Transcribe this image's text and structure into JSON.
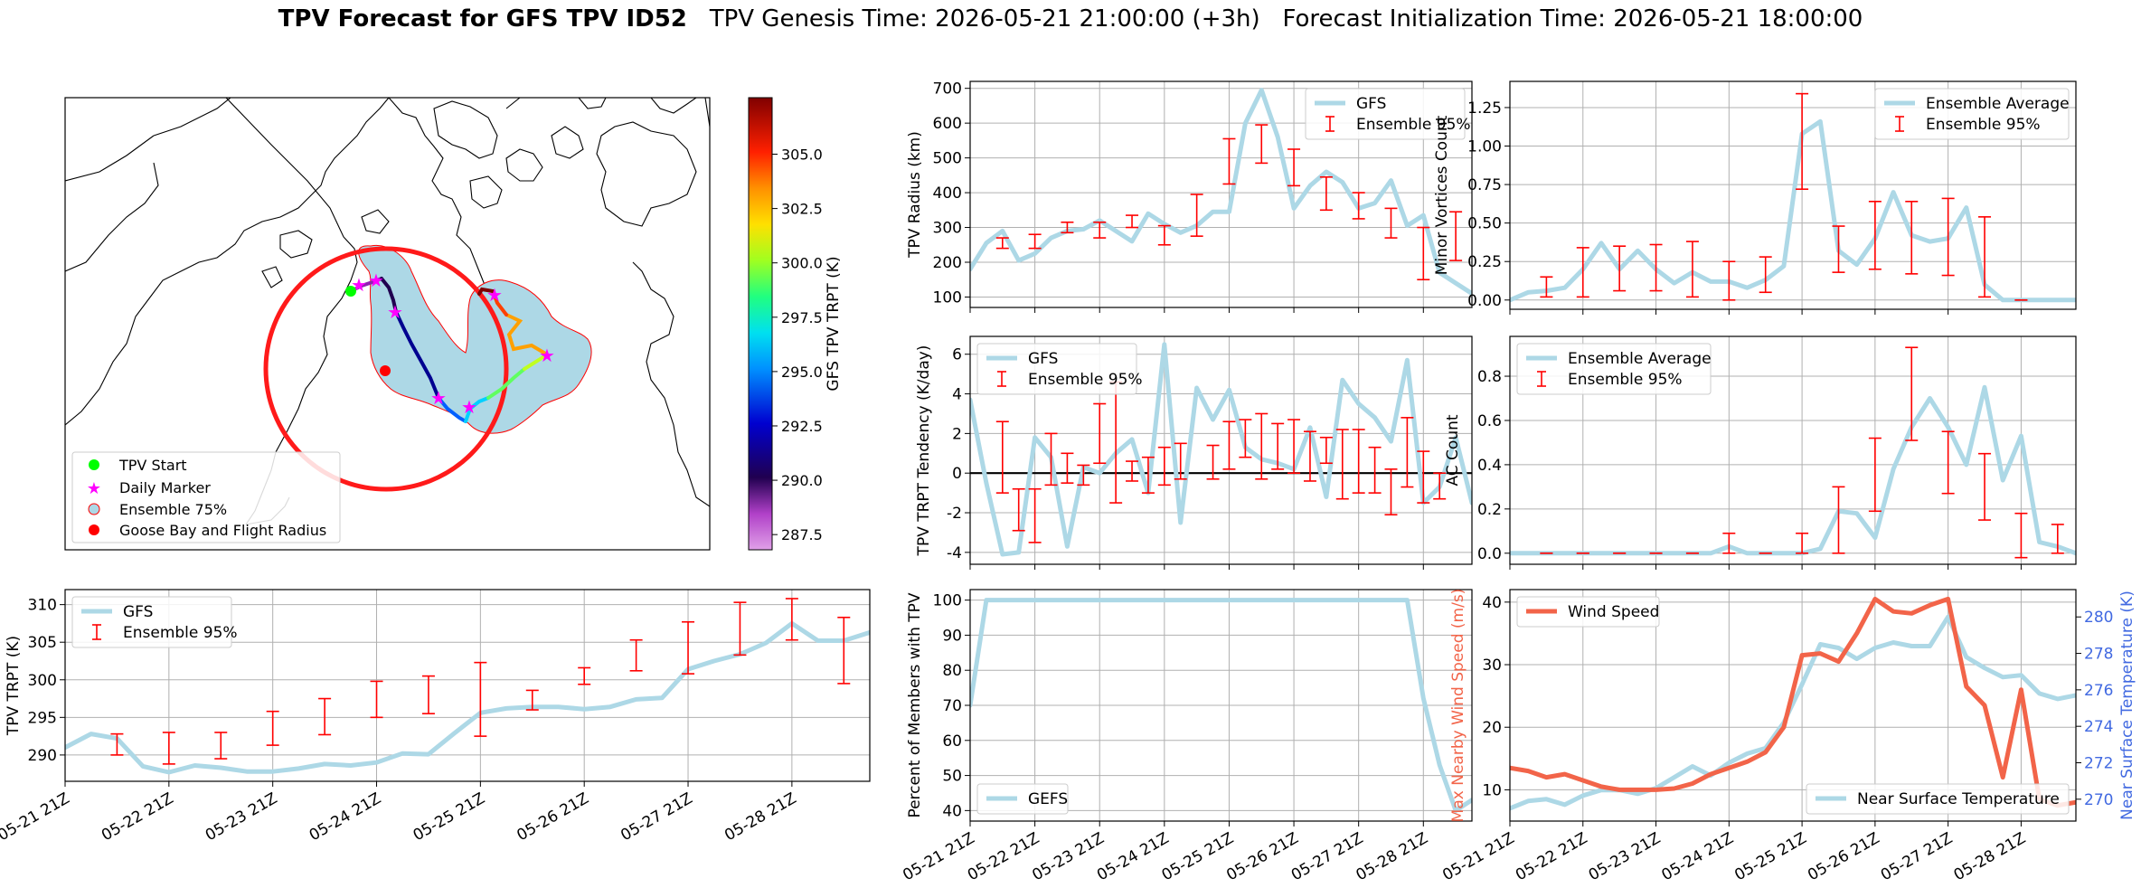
{
  "title": {
    "main": "TPV Forecast for GFS TPV ID52",
    "genesis": "TPV Genesis Time: 2026-05-21 21:00:00 (+3h)",
    "init": "Forecast Initialization Time: 2026-05-21 18:00:00"
  },
  "colors": {
    "gfs_line": "#add8e6",
    "errorbar": "#ff0000",
    "wind": "#f26449",
    "temp_axis": "#4169e1",
    "ensemble_fill": "#add8e6"
  },
  "map": {
    "type": "map",
    "colorbar": {
      "label": "GFS TPV TRPT (K)",
      "ticks": [
        "287.5",
        "290.0",
        "292.5",
        "295.0",
        "297.5",
        "300.0",
        "302.5",
        "305.0"
      ],
      "range": [
        286.8,
        307.6
      ]
    },
    "legend": [
      {
        "label": "TPV Start",
        "symbol": "circle",
        "color": "#00ff00"
      },
      {
        "label": "Daily Marker",
        "symbol": "star",
        "color": "#ff00ff"
      },
      {
        "label": "Ensemble 75%",
        "symbol": "circle-outline",
        "color": "#add8e6"
      },
      {
        "label": "Goose Bay and Flight Radius",
        "symbol": "circle",
        "color": "#ff0000"
      }
    ]
  },
  "chart_data": [
    {
      "id": "tpv_trpt",
      "type": "line",
      "ylabel": "TPV TRPT (K)",
      "ylim": [
        286.5,
        312
      ],
      "yticks": [
        290,
        295,
        300,
        305,
        310
      ],
      "xlim": [
        0,
        31
      ],
      "xticks": [
        "05-21 21Z",
        "05-22 21Z",
        "05-23 21Z",
        "05-24 21Z",
        "05-25 21Z",
        "05-26 21Z",
        "05-27 21Z",
        "05-28 21Z"
      ],
      "legend": [
        "GFS",
        "Ensemble 95%"
      ],
      "legend_loc": "upper-left",
      "gfs": [
        291.0,
        292.8,
        292.2,
        288.5,
        287.7,
        288.6,
        288.3,
        287.8,
        287.8,
        288.2,
        288.8,
        288.6,
        289.0,
        290.2,
        290.1,
        292.9,
        295.6,
        296.2,
        296.4,
        296.4,
        296.1,
        296.4,
        297.4,
        297.6,
        301.4,
        302.5,
        303.4,
        304.9,
        307.5,
        305.2,
        305.2,
        306.3
      ],
      "errorbars": [
        {
          "x": 2,
          "low": 290.0,
          "high": 292.8
        },
        {
          "x": 4,
          "low": 288.8,
          "high": 293.0
        },
        {
          "x": 6,
          "low": 289.5,
          "high": 293.0
        },
        {
          "x": 8,
          "low": 291.3,
          "high": 295.8
        },
        {
          "x": 10,
          "low": 292.7,
          "high": 297.5
        },
        {
          "x": 12,
          "low": 295.0,
          "high": 299.8
        },
        {
          "x": 14,
          "low": 295.5,
          "high": 300.5
        },
        {
          "x": 16,
          "low": 292.5,
          "high": 302.3
        },
        {
          "x": 18,
          "low": 296.0,
          "high": 298.6
        },
        {
          "x": 20,
          "low": 299.4,
          "high": 301.6
        },
        {
          "x": 22,
          "low": 301.2,
          "high": 305.3
        },
        {
          "x": 24,
          "low": 300.8,
          "high": 307.7
        },
        {
          "x": 26,
          "low": 303.3,
          "high": 310.3
        },
        {
          "x": 28,
          "low": 305.3,
          "high": 310.8
        },
        {
          "x": 30,
          "low": 299.5,
          "high": 308.3
        }
      ]
    },
    {
      "id": "tpv_radius",
      "type": "line",
      "ylabel": "TPV Radius (km)",
      "ylim": [
        70,
        720
      ],
      "yticks": [
        100,
        200,
        300,
        400,
        500,
        600,
        700
      ],
      "xlim": [
        0,
        31
      ],
      "legend": [
        "GFS",
        "Ensemble 95%"
      ],
      "legend_loc": "upper-right",
      "gfs": [
        180,
        255,
        290,
        205,
        225,
        270,
        290,
        295,
        320,
        290,
        260,
        340,
        310,
        285,
        305,
        345,
        345,
        600,
        695,
        560,
        355,
        420,
        460,
        430,
        355,
        370,
        435,
        305,
        335,
        170,
        140,
        110
      ],
      "errorbars": [
        {
          "x": 2,
          "low": 240,
          "high": 270
        },
        {
          "x": 4,
          "low": 240,
          "high": 280
        },
        {
          "x": 6,
          "low": 285,
          "high": 315
        },
        {
          "x": 8,
          "low": 270,
          "high": 315
        },
        {
          "x": 10,
          "low": 300,
          "high": 335
        },
        {
          "x": 12,
          "low": 250,
          "high": 305
        },
        {
          "x": 14,
          "low": 275,
          "high": 395
        },
        {
          "x": 16,
          "low": 425,
          "high": 555
        },
        {
          "x": 18,
          "low": 485,
          "high": 595
        },
        {
          "x": 20,
          "low": 420,
          "high": 525
        },
        {
          "x": 22,
          "low": 350,
          "high": 445
        },
        {
          "x": 24,
          "low": 325,
          "high": 400
        },
        {
          "x": 26,
          "low": 270,
          "high": 355
        },
        {
          "x": 28,
          "low": 150,
          "high": 300
        },
        {
          "x": 30,
          "low": 205,
          "high": 345
        }
      ]
    },
    {
      "id": "tpv_tendency",
      "type": "line",
      "ylabel": "TPV TRPT Tendency (K/day)",
      "ylim": [
        -4.6,
        6.9
      ],
      "yticks": [
        -4,
        -2,
        0,
        2,
        4,
        6
      ],
      "xlim": [
        0,
        31
      ],
      "legend": [
        "GFS",
        "Ensemble 95%"
      ],
      "legend_loc": "upper-left",
      "zero_line": true,
      "gfs": [
        3.7,
        -0.5,
        -4.1,
        -4.0,
        1.8,
        0.8,
        -3.7,
        0.3,
        0.0,
        1.0,
        1.7,
        -1.0,
        6.5,
        -2.5,
        4.3,
        2.7,
        4.2,
        1.3,
        0.7,
        0.5,
        0.2,
        2.3,
        -1.2,
        4.7,
        3.5,
        2.8,
        1.6,
        5.7,
        -1.5,
        -0.7,
        1.8,
        -1.5
      ],
      "errorbars": [
        {
          "x": 2,
          "low": -1.0,
          "high": 2.6
        },
        {
          "x": 3,
          "low": -2.9,
          "high": -0.8
        },
        {
          "x": 4,
          "low": -3.5,
          "high": -0.8
        },
        {
          "x": 5,
          "low": -0.6,
          "high": 2.0
        },
        {
          "x": 6,
          "low": -0.5,
          "high": 1.0
        },
        {
          "x": 7,
          "low": -0.6,
          "high": 0.4
        },
        {
          "x": 8,
          "low": 0.5,
          "high": 3.5
        },
        {
          "x": 9,
          "low": -1.5,
          "high": 4.6
        },
        {
          "x": 10,
          "low": -0.4,
          "high": 0.6
        },
        {
          "x": 11,
          "low": -1.0,
          "high": 0.8
        },
        {
          "x": 12,
          "low": -0.6,
          "high": 1.3
        },
        {
          "x": 13,
          "low": -0.3,
          "high": 1.5
        },
        {
          "x": 15,
          "low": -0.3,
          "high": 1.4
        },
        {
          "x": 16,
          "low": 0.2,
          "high": 2.6
        },
        {
          "x": 17,
          "low": 0.8,
          "high": 2.7
        },
        {
          "x": 18,
          "low": -0.3,
          "high": 3.0
        },
        {
          "x": 19,
          "low": 0.2,
          "high": 2.5
        },
        {
          "x": 20,
          "low": 0.0,
          "high": 2.7
        },
        {
          "x": 21,
          "low": -0.4,
          "high": 2.1
        },
        {
          "x": 22,
          "low": 0.5,
          "high": 1.8
        },
        {
          "x": 23,
          "low": -1.3,
          "high": 2.2
        },
        {
          "x": 24,
          "low": -1.0,
          "high": 2.2
        },
        {
          "x": 25,
          "low": -1.0,
          "high": 1.3
        },
        {
          "x": 26,
          "low": -2.1,
          "high": 0.2
        },
        {
          "x": 27,
          "low": -0.7,
          "high": 2.8
        },
        {
          "x": 28,
          "low": -1.5,
          "high": 1.1
        },
        {
          "x": 29,
          "low": -1.3,
          "high": 0.0
        }
      ]
    },
    {
      "id": "members_pct",
      "type": "line",
      "ylabel": "Percent of Members with TPV",
      "ylim": [
        37,
        103
      ],
      "yticks": [
        40,
        50,
        60,
        70,
        80,
        90,
        100
      ],
      "xlim": [
        0,
        31
      ],
      "xticks": [
        "05-21 21Z",
        "05-22 21Z",
        "05-23 21Z",
        "05-24 21Z",
        "05-25 21Z",
        "05-26 21Z",
        "05-27 21Z",
        "05-28 21Z"
      ],
      "legend": [
        "GEFS"
      ],
      "legend_loc": "lower-left",
      "gefs": [
        70,
        100,
        100,
        100,
        100,
        100,
        100,
        100,
        100,
        100,
        100,
        100,
        100,
        100,
        100,
        100,
        100,
        100,
        100,
        100,
        100,
        100,
        100,
        100,
        100,
        100,
        100,
        100,
        72,
        53,
        40,
        43
      ]
    },
    {
      "id": "minor_vortices",
      "type": "line",
      "ylabel": "Minor Vortices Count",
      "ylim": [
        -0.06,
        1.42
      ],
      "yticks": [
        "0.00",
        "0.25",
        "0.50",
        "0.75",
        "1.00",
        "1.25"
      ],
      "xlim": [
        0,
        31
      ],
      "legend": [
        "Ensemble Average",
        "Ensemble 95%"
      ],
      "legend_loc": "upper-right",
      "avg": [
        0.0,
        0.05,
        0.06,
        0.08,
        0.2,
        0.37,
        0.2,
        0.32,
        0.2,
        0.11,
        0.18,
        0.12,
        0.12,
        0.08,
        0.13,
        0.22,
        1.08,
        1.16,
        0.32,
        0.23,
        0.4,
        0.7,
        0.42,
        0.38,
        0.4,
        0.6,
        0.1,
        0.0,
        0.0,
        0.0,
        0.0,
        0.0
      ],
      "errorbars": [
        {
          "x": 2,
          "low": 0.02,
          "high": 0.15
        },
        {
          "x": 4,
          "low": 0.02,
          "high": 0.34
        },
        {
          "x": 6,
          "low": 0.06,
          "high": 0.35
        },
        {
          "x": 8,
          "low": 0.06,
          "high": 0.36
        },
        {
          "x": 10,
          "low": 0.02,
          "high": 0.38
        },
        {
          "x": 12,
          "low": 0.0,
          "high": 0.25
        },
        {
          "x": 14,
          "low": 0.05,
          "high": 0.28
        },
        {
          "x": 16,
          "low": 0.72,
          "high": 1.34
        },
        {
          "x": 18,
          "low": 0.18,
          "high": 0.48
        },
        {
          "x": 20,
          "low": 0.2,
          "high": 0.64
        },
        {
          "x": 22,
          "low": 0.17,
          "high": 0.64
        },
        {
          "x": 24,
          "low": 0.16,
          "high": 0.66
        },
        {
          "x": 26,
          "low": 0.02,
          "high": 0.54
        },
        {
          "x": 28,
          "low": 0.0,
          "high": 0.0
        }
      ]
    },
    {
      "id": "ac_count",
      "type": "line",
      "ylabel": "AC Count",
      "ylim": [
        -0.05,
        0.98
      ],
      "yticks": [
        "0.0",
        "0.2",
        "0.4",
        "0.6",
        "0.8"
      ],
      "xlim": [
        0,
        31
      ],
      "legend": [
        "Ensemble Average",
        "Ensemble 95%"
      ],
      "legend_loc": "upper-left",
      "avg": [
        0.0,
        0.0,
        0.0,
        0.0,
        0.0,
        0.0,
        0.0,
        0.0,
        0.0,
        0.0,
        0.0,
        0.0,
        0.03,
        0.0,
        0.0,
        0.0,
        0.0,
        0.02,
        0.19,
        0.18,
        0.07,
        0.38,
        0.57,
        0.7,
        0.57,
        0.4,
        0.75,
        0.33,
        0.53,
        0.05,
        0.03,
        0.0
      ],
      "errorbars": [
        {
          "x": 2,
          "low": 0.0,
          "high": 0.0
        },
        {
          "x": 4,
          "low": 0.0,
          "high": 0.0
        },
        {
          "x": 6,
          "low": 0.0,
          "high": 0.0
        },
        {
          "x": 8,
          "low": 0.0,
          "high": 0.0
        },
        {
          "x": 10,
          "low": 0.0,
          "high": 0.0
        },
        {
          "x": 12,
          "low": 0.0,
          "high": 0.09
        },
        {
          "x": 14,
          "low": 0.0,
          "high": 0.0
        },
        {
          "x": 16,
          "low": 0.0,
          "high": 0.09
        },
        {
          "x": 18,
          "low": 0.0,
          "high": 0.3
        },
        {
          "x": 20,
          "low": 0.19,
          "high": 0.52
        },
        {
          "x": 22,
          "low": 0.51,
          "high": 0.93
        },
        {
          "x": 24,
          "low": 0.27,
          "high": 0.55
        },
        {
          "x": 26,
          "low": 0.15,
          "high": 0.45
        },
        {
          "x": 28,
          "low": -0.02,
          "high": 0.18
        },
        {
          "x": 30,
          "low": 0.0,
          "high": 0.13
        }
      ]
    },
    {
      "id": "wind_temp",
      "type": "line",
      "ylabel_left": "Max Nearby Wind Speed (m/s)",
      "ylabel_right": "Near Surface Temperature (K)",
      "ylim_left": [
        5,
        42
      ],
      "yticks_left": [
        10,
        20,
        30,
        40
      ],
      "ylim_right": [
        268.8,
        281.5
      ],
      "yticks_right": [
        270,
        272,
        274,
        276,
        278,
        280
      ],
      "xlim": [
        0,
        31
      ],
      "xticks": [
        "05-21 21Z",
        "05-22 21Z",
        "05-23 21Z",
        "05-24 21Z",
        "05-25 21Z",
        "05-26 21Z",
        "05-27 21Z",
        "05-28 21Z"
      ],
      "series": [
        {
          "name": "Wind Speed",
          "values": [
            13.5,
            13.0,
            12.0,
            12.5,
            11.5,
            10.5,
            10.0,
            10.0,
            10.0,
            10.2,
            11.0,
            12.5,
            13.5,
            14.5,
            16.0,
            20.0,
            31.5,
            31.8,
            30.5,
            35.0,
            40.5,
            38.5,
            38.2,
            39.5,
            40.5,
            26.5,
            23.5,
            12.0,
            26.0,
            8.5,
            7.5,
            8.0
          ]
        },
        {
          "name": "Near Surface Temperature",
          "values": [
            269.5,
            269.9,
            270.0,
            269.7,
            270.2,
            270.5,
            270.5,
            270.3,
            270.6,
            271.2,
            271.8,
            271.3,
            272.0,
            272.5,
            272.8,
            274.2,
            276.3,
            278.5,
            278.3,
            277.7,
            278.3,
            278.6,
            278.4,
            278.4,
            280.0,
            277.8,
            277.2,
            276.7,
            276.8,
            275.8,
            275.5,
            275.7
          ]
        }
      ],
      "legend_loc": [
        "upper-left",
        "lower-right"
      ]
    }
  ]
}
